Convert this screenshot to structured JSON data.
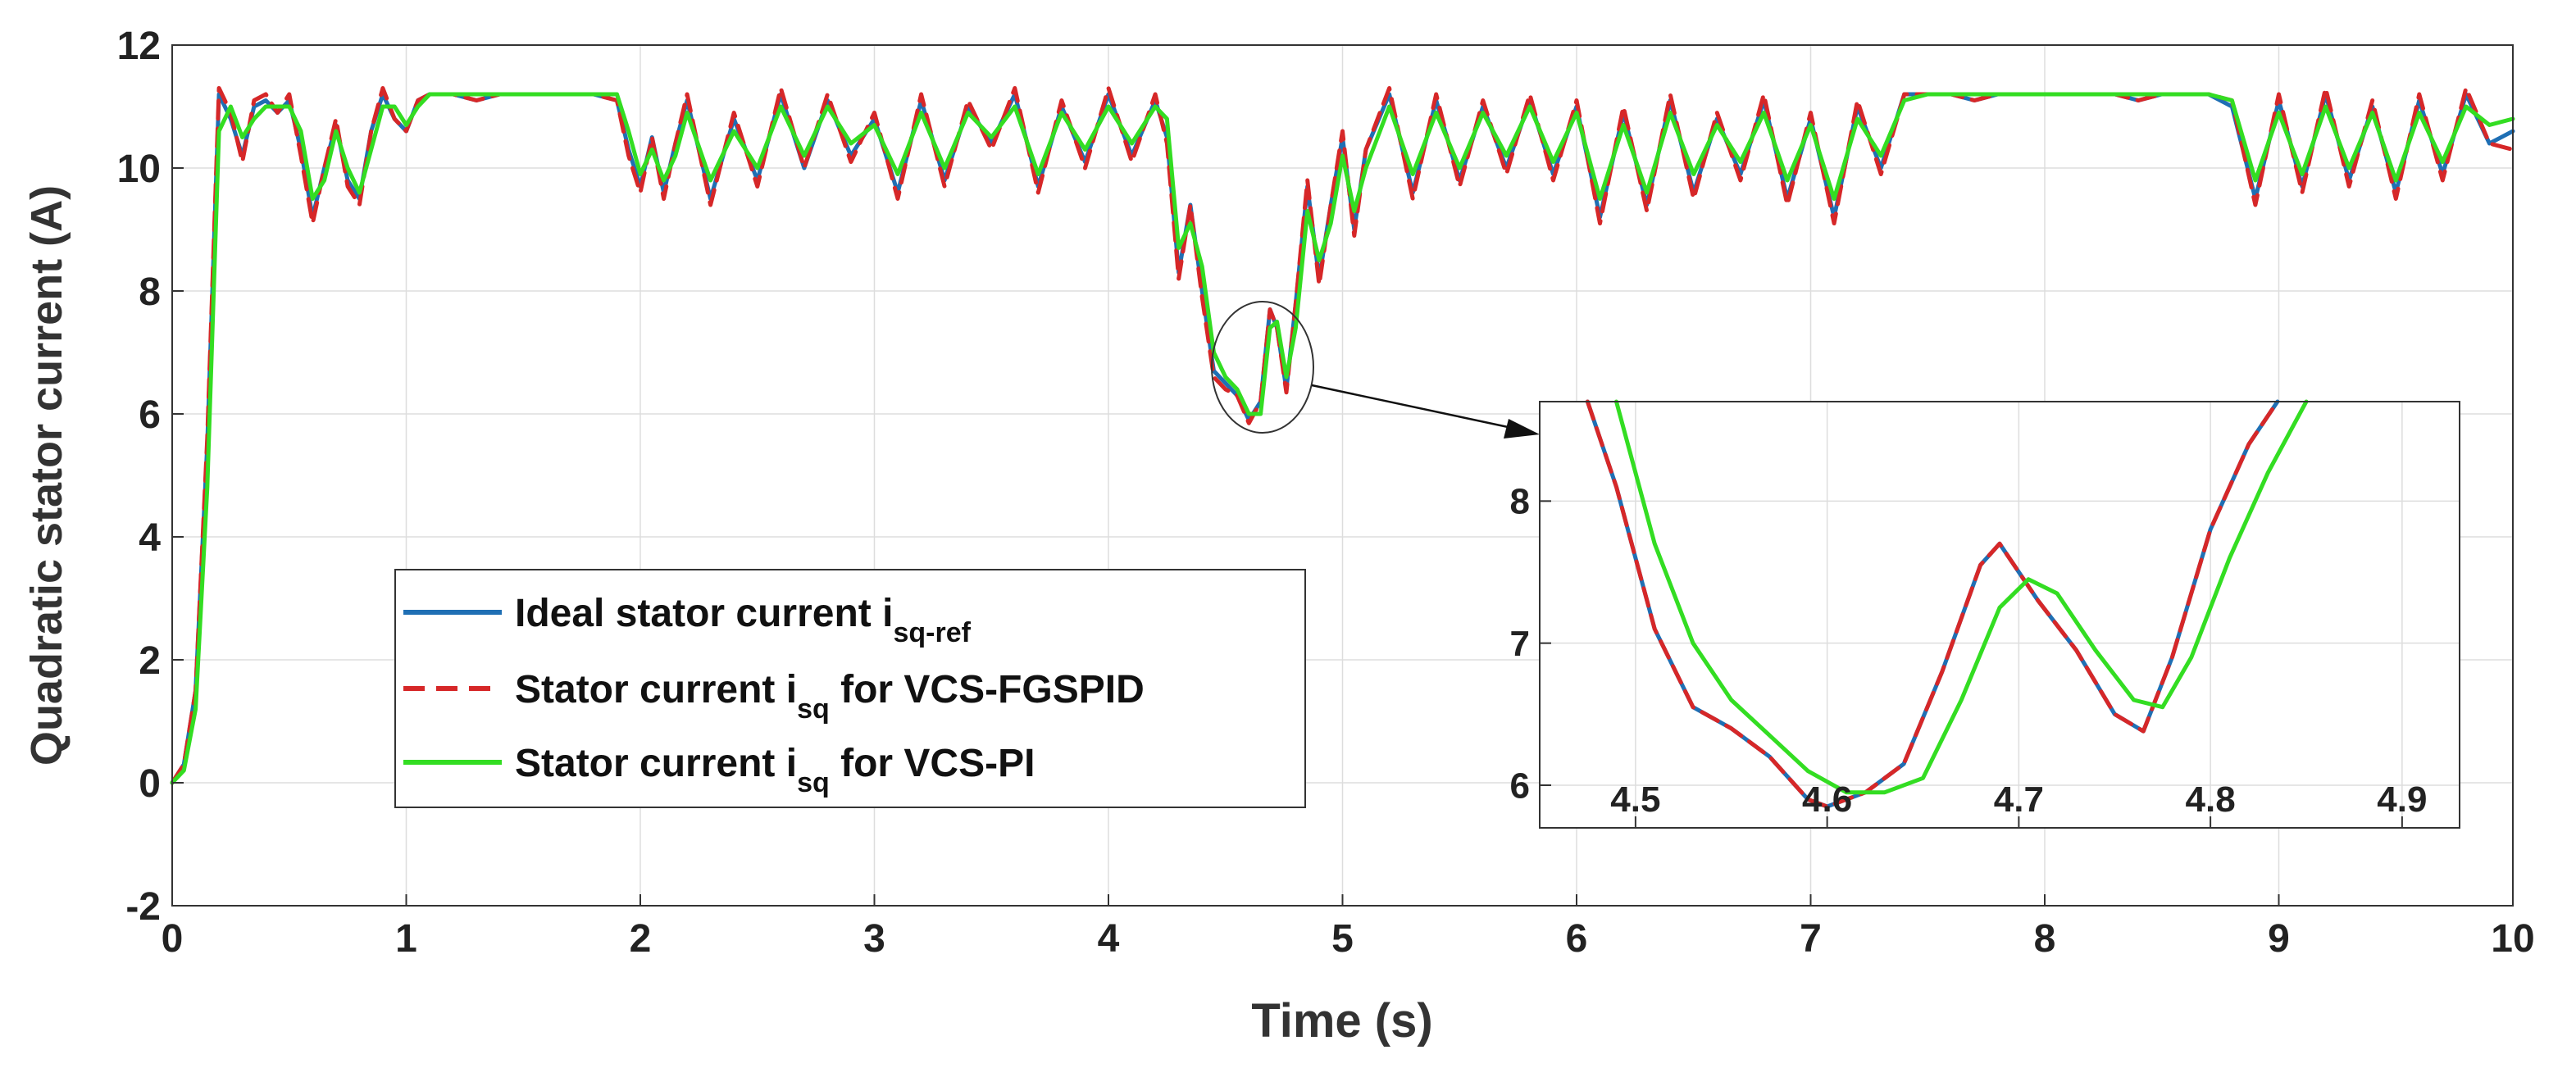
{
  "chart_data": {
    "type": "line",
    "title": "",
    "xlabel": "Time (s)",
    "ylabel": "Quadratic stator current (A)",
    "xlim": [
      0,
      10
    ],
    "ylim": [
      -2,
      12
    ],
    "xticks": [
      "0",
      "1",
      "2",
      "3",
      "4",
      "5",
      "6",
      "7",
      "8",
      "9",
      "10"
    ],
    "yticks": [
      "-2",
      "0",
      "2",
      "4",
      "6",
      "8",
      "10",
      "12"
    ],
    "grid": true,
    "legend_position": "lower-left",
    "legend": [
      {
        "label": "Ideal stator current i",
        "sub": "sq-ref",
        "suffix": "",
        "style": "solid",
        "color": "#1f6fb4"
      },
      {
        "label": "Stator current i",
        "sub": "sq",
        "suffix": " for VCS-FGSPID",
        "style": "dashed",
        "color": "#d62728"
      },
      {
        "label": "Stator current i",
        "sub": "sq",
        "suffix": " for VCS-PI",
        "style": "solid",
        "color": "#33dd22"
      }
    ],
    "series": [
      {
        "name": "Ideal stator current i_sq-ref",
        "color": "#1f6fb4",
        "x": [
          0,
          0.05,
          0.1,
          0.15,
          0.2,
          0.25,
          0.3,
          0.35,
          0.4,
          0.45,
          0.5,
          0.55,
          0.6,
          0.65,
          0.7,
          0.75,
          0.8,
          0.85,
          0.9,
          0.95,
          1.0,
          1.05,
          1.1,
          1.2,
          1.3,
          1.4,
          1.5,
          1.6,
          1.7,
          1.8,
          1.9,
          1.95,
          2.0,
          2.05,
          2.1,
          2.15,
          2.2,
          2.3,
          2.4,
          2.5,
          2.6,
          2.7,
          2.8,
          2.9,
          3.0,
          3.1,
          3.2,
          3.3,
          3.4,
          3.5,
          3.6,
          3.7,
          3.8,
          3.9,
          4.0,
          4.1,
          4.2,
          4.25,
          4.3,
          4.35,
          4.4,
          4.45,
          4.5,
          4.55,
          4.6,
          4.65,
          4.69,
          4.72,
          4.76,
          4.8,
          4.85,
          4.9,
          4.95,
          5.0,
          5.05,
          5.1,
          5.2,
          5.3,
          5.4,
          5.5,
          5.6,
          5.7,
          5.8,
          5.9,
          6.0,
          6.1,
          6.2,
          6.3,
          6.4,
          6.5,
          6.6,
          6.7,
          6.8,
          6.9,
          7.0,
          7.1,
          7.2,
          7.3,
          7.4,
          7.5,
          7.6,
          7.7,
          7.8,
          7.9,
          8.0,
          8.1,
          8.2,
          8.3,
          8.4,
          8.5,
          8.6,
          8.7,
          8.8,
          8.9,
          9.0,
          9.1,
          9.2,
          9.3,
          9.4,
          9.5,
          9.6,
          9.7,
          9.8,
          9.9,
          10.0
        ],
        "values": [
          0,
          0.3,
          1.5,
          5.5,
          11.2,
          10.8,
          10.2,
          11.0,
          11.1,
          10.9,
          11.1,
          10.3,
          9.2,
          10.0,
          10.7,
          9.8,
          9.5,
          10.6,
          11.2,
          10.8,
          10.6,
          11.1,
          11.2,
          11.2,
          11.1,
          11.2,
          11.2,
          11.2,
          11.2,
          11.2,
          11.1,
          10.3,
          9.7,
          10.5,
          9.6,
          10.4,
          11.1,
          9.5,
          10.8,
          9.8,
          11.2,
          10.0,
          11.1,
          10.2,
          10.8,
          9.6,
          11.1,
          9.8,
          11.0,
          10.4,
          11.2,
          9.7,
          11.0,
          10.1,
          11.2,
          10.2,
          11.1,
          10.5,
          8.3,
          9.4,
          8.0,
          6.7,
          6.5,
          6.3,
          5.9,
          6.2,
          7.7,
          7.4,
          6.4,
          7.8,
          9.7,
          8.2,
          9.4,
          10.5,
          9.0,
          10.3,
          11.2,
          9.6,
          11.1,
          9.8,
          11.0,
          10.0,
          11.1,
          9.9,
          11.0,
          9.2,
          10.9,
          9.4,
          11.1,
          9.6,
          10.8,
          9.9,
          11.1,
          9.5,
          10.8,
          9.2,
          11.0,
          10.0,
          11.2,
          11.2,
          11.2,
          11.1,
          11.2,
          11.2,
          11.2,
          11.2,
          11.2,
          11.2,
          11.1,
          11.2,
          11.2,
          11.2,
          11.0,
          9.5,
          11.1,
          9.7,
          11.2,
          9.8,
          11.0,
          9.6,
          11.1,
          9.9,
          11.2,
          10.4,
          10.6
        ]
      },
      {
        "name": "Stator current i_sq for VCS-FGSPID",
        "color": "#d62728",
        "x": [
          0,
          0.05,
          0.1,
          0.15,
          0.2,
          0.25,
          0.3,
          0.35,
          0.4,
          0.45,
          0.5,
          0.55,
          0.6,
          0.65,
          0.7,
          0.75,
          0.8,
          0.85,
          0.9,
          0.95,
          1.0,
          1.05,
          1.1,
          1.2,
          1.3,
          1.4,
          1.5,
          1.6,
          1.7,
          1.8,
          1.9,
          1.95,
          2.0,
          2.05,
          2.1,
          2.15,
          2.2,
          2.3,
          2.4,
          2.5,
          2.6,
          2.7,
          2.8,
          2.9,
          3.0,
          3.1,
          3.2,
          3.3,
          3.4,
          3.5,
          3.6,
          3.7,
          3.8,
          3.9,
          4.0,
          4.1,
          4.2,
          4.25,
          4.3,
          4.35,
          4.4,
          4.45,
          4.5,
          4.55,
          4.6,
          4.65,
          4.69,
          4.72,
          4.76,
          4.8,
          4.85,
          4.9,
          4.95,
          5.0,
          5.05,
          5.1,
          5.2,
          5.3,
          5.4,
          5.5,
          5.6,
          5.7,
          5.8,
          5.9,
          6.0,
          6.1,
          6.2,
          6.3,
          6.4,
          6.5,
          6.6,
          6.7,
          6.8,
          6.9,
          7.0,
          7.1,
          7.2,
          7.3,
          7.4,
          7.5,
          7.6,
          7.7,
          7.8,
          7.9,
          8.0,
          8.1,
          8.2,
          8.3,
          8.4,
          8.5,
          8.6,
          8.7,
          8.8,
          8.9,
          9.0,
          9.1,
          9.2,
          9.3,
          9.4,
          9.5,
          9.6,
          9.7,
          9.8,
          9.9,
          10.0
        ],
        "values": [
          0,
          0.3,
          1.5,
          5.6,
          11.3,
          10.9,
          10.1,
          11.1,
          11.2,
          10.9,
          11.2,
          10.2,
          9.1,
          10.0,
          10.8,
          9.7,
          9.4,
          10.6,
          11.3,
          10.8,
          10.6,
          11.1,
          11.2,
          11.2,
          11.1,
          11.2,
          11.2,
          11.2,
          11.2,
          11.2,
          11.1,
          10.2,
          9.6,
          10.5,
          9.5,
          10.4,
          11.2,
          9.4,
          10.9,
          9.7,
          11.3,
          10.0,
          11.2,
          10.1,
          10.9,
          9.5,
          11.2,
          9.7,
          11.1,
          10.3,
          11.3,
          9.6,
          11.1,
          10.0,
          11.3,
          10.1,
          11.2,
          10.4,
          8.2,
          9.4,
          7.9,
          6.6,
          6.4,
          6.3,
          5.85,
          6.2,
          7.7,
          7.4,
          6.35,
          7.8,
          9.8,
          8.1,
          9.4,
          10.6,
          8.9,
          10.3,
          11.3,
          9.5,
          11.2,
          9.7,
          11.1,
          9.9,
          11.2,
          9.8,
          11.1,
          9.1,
          11.0,
          9.3,
          11.2,
          9.5,
          10.9,
          9.8,
          11.2,
          9.4,
          10.9,
          9.1,
          11.1,
          9.9,
          11.2,
          11.2,
          11.2,
          11.1,
          11.2,
          11.2,
          11.2,
          11.2,
          11.2,
          11.2,
          11.1,
          11.2,
          11.2,
          11.2,
          11.1,
          9.4,
          11.2,
          9.6,
          11.3,
          9.7,
          11.1,
          9.5,
          11.2,
          9.8,
          11.3,
          10.4,
          10.3
        ]
      },
      {
        "name": "Stator current i_sq for VCS-PI",
        "color": "#33dd22",
        "x": [
          0,
          0.05,
          0.1,
          0.15,
          0.2,
          0.25,
          0.3,
          0.35,
          0.4,
          0.45,
          0.5,
          0.55,
          0.6,
          0.65,
          0.7,
          0.75,
          0.8,
          0.85,
          0.9,
          0.95,
          1.0,
          1.05,
          1.1,
          1.2,
          1.3,
          1.4,
          1.5,
          1.6,
          1.7,
          1.8,
          1.9,
          1.95,
          2.0,
          2.05,
          2.1,
          2.15,
          2.2,
          2.3,
          2.4,
          2.5,
          2.6,
          2.7,
          2.8,
          2.9,
          3.0,
          3.1,
          3.2,
          3.3,
          3.4,
          3.5,
          3.6,
          3.7,
          3.8,
          3.9,
          4.0,
          4.1,
          4.2,
          4.25,
          4.3,
          4.35,
          4.4,
          4.45,
          4.5,
          4.55,
          4.6,
          4.65,
          4.69,
          4.72,
          4.76,
          4.8,
          4.85,
          4.9,
          4.95,
          5.0,
          5.05,
          5.1,
          5.2,
          5.3,
          5.4,
          5.5,
          5.6,
          5.7,
          5.8,
          5.9,
          6.0,
          6.1,
          6.2,
          6.3,
          6.4,
          6.5,
          6.6,
          6.7,
          6.8,
          6.9,
          7.0,
          7.1,
          7.2,
          7.3,
          7.4,
          7.5,
          7.6,
          7.7,
          7.8,
          7.9,
          8.0,
          8.1,
          8.2,
          8.3,
          8.4,
          8.5,
          8.6,
          8.7,
          8.8,
          8.9,
          9.0,
          9.1,
          9.2,
          9.3,
          9.4,
          9.5,
          9.6,
          9.7,
          9.8,
          9.9,
          10.0
        ],
        "values": [
          0,
          0.2,
          1.2,
          4.8,
          10.6,
          11.0,
          10.5,
          10.8,
          11.0,
          11.0,
          11.0,
          10.6,
          9.5,
          9.8,
          10.6,
          10.0,
          9.6,
          10.3,
          11.0,
          11.0,
          10.7,
          11.0,
          11.2,
          11.2,
          11.2,
          11.2,
          11.2,
          11.2,
          11.2,
          11.2,
          11.2,
          10.6,
          9.9,
          10.3,
          9.8,
          10.2,
          10.9,
          9.8,
          10.6,
          10.0,
          11.0,
          10.2,
          11.0,
          10.4,
          10.7,
          9.9,
          10.9,
          10.0,
          10.9,
          10.5,
          11.0,
          9.9,
          10.9,
          10.3,
          11.0,
          10.4,
          11.0,
          10.8,
          8.7,
          9.1,
          8.4,
          7.0,
          6.6,
          6.4,
          6.0,
          6.0,
          7.4,
          7.5,
          6.6,
          7.4,
          9.3,
          8.5,
          9.1,
          10.2,
          9.3,
          10.0,
          11.0,
          9.9,
          10.9,
          10.0,
          10.9,
          10.2,
          11.0,
          10.1,
          10.9,
          9.5,
          10.7,
          9.6,
          10.9,
          9.9,
          10.7,
          10.1,
          10.9,
          9.8,
          10.7,
          9.5,
          10.8,
          10.2,
          11.1,
          11.2,
          11.2,
          11.2,
          11.2,
          11.2,
          11.2,
          11.2,
          11.2,
          11.2,
          11.2,
          11.2,
          11.2,
          11.2,
          11.1,
          9.8,
          10.9,
          9.9,
          11.0,
          10.0,
          10.9,
          9.8,
          10.9,
          10.1,
          11.0,
          10.7,
          10.8
        ]
      }
    ],
    "inset": {
      "xlim": [
        4.45,
        4.93
      ],
      "ylim": [
        5.7,
        8.7
      ],
      "xticks": [
        "4.5",
        "4.6",
        "4.7",
        "4.8",
        "4.9"
      ],
      "yticks": [
        "6",
        "7",
        "8"
      ],
      "series": [
        {
          "name": "Ideal stator current i_sq-ref",
          "color": "#1f6fb4",
          "x": [
            4.475,
            4.49,
            4.51,
            4.53,
            4.55,
            4.57,
            4.59,
            4.6,
            4.62,
            4.64,
            4.66,
            4.68,
            4.69,
            4.71,
            4.73,
            4.75,
            4.765,
            4.78,
            4.8,
            4.82,
            4.835
          ],
          "values": [
            8.7,
            8.1,
            7.1,
            6.55,
            6.4,
            6.2,
            5.9,
            5.85,
            5.95,
            6.15,
            6.8,
            7.55,
            7.7,
            7.3,
            6.95,
            6.5,
            6.38,
            6.9,
            7.8,
            8.4,
            8.7
          ]
        },
        {
          "name": "Stator current i_sq for VCS-FGSPID",
          "color": "#d62728",
          "x": [
            4.475,
            4.49,
            4.51,
            4.53,
            4.55,
            4.57,
            4.59,
            4.6,
            4.62,
            4.64,
            4.66,
            4.68,
            4.69,
            4.71,
            4.73,
            4.75,
            4.765,
            4.78,
            4.8,
            4.82,
            4.835
          ],
          "values": [
            8.7,
            8.1,
            7.1,
            6.55,
            6.4,
            6.2,
            5.9,
            5.85,
            5.95,
            6.15,
            6.8,
            7.55,
            7.7,
            7.3,
            6.95,
            6.5,
            6.38,
            6.9,
            7.8,
            8.4,
            8.7
          ]
        },
        {
          "name": "Stator current i_sq for VCS-PI",
          "color": "#33dd22",
          "x": [
            4.49,
            4.51,
            4.53,
            4.55,
            4.57,
            4.59,
            4.61,
            4.63,
            4.65,
            4.67,
            4.69,
            4.705,
            4.72,
            4.74,
            4.76,
            4.775,
            4.79,
            4.81,
            4.83,
            4.85
          ],
          "values": [
            8.7,
            7.7,
            7.0,
            6.6,
            6.35,
            6.1,
            5.95,
            5.95,
            6.05,
            6.6,
            7.25,
            7.45,
            7.35,
            6.95,
            6.6,
            6.55,
            6.9,
            7.6,
            8.2,
            8.7
          ]
        }
      ]
    }
  }
}
